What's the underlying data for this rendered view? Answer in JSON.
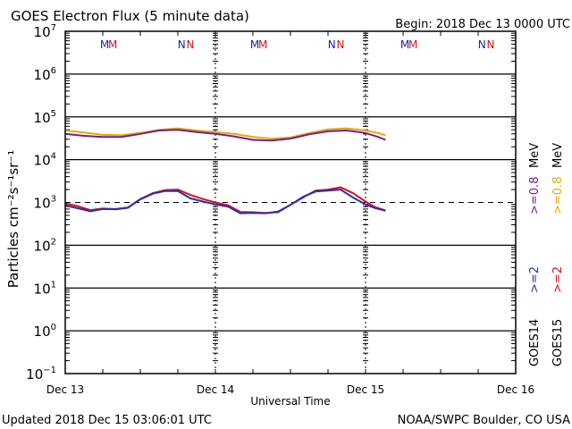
{
  "chart_data": {
    "type": "line",
    "title": "GOES Electron Flux (5 minute data)",
    "subtitle": "Begin: 2018 Dec 13 0000 UTC",
    "xlabel": "Universal Time",
    "ylabel": "Particles cm⁻²s⁻¹sr⁻¹",
    "yscale": "log",
    "ylim": [
      0.1,
      10000000
    ],
    "xlim_hours": [
      0,
      72
    ],
    "x_ticks": [
      {
        "hour": 0,
        "label": "Dec 13"
      },
      {
        "hour": 24,
        "label": "Dec 14"
      },
      {
        "hour": 48,
        "label": "Dec 15"
      },
      {
        "hour": 72,
        "label": "Dec 16"
      }
    ],
    "y_ticks": [
      {
        "exp": 7,
        "label": "10",
        "sup": "7"
      },
      {
        "exp": 6,
        "label": "10",
        "sup": "6"
      },
      {
        "exp": 5,
        "label": "10",
        "sup": "5"
      },
      {
        "exp": 4,
        "label": "10",
        "sup": "4"
      },
      {
        "exp": 3,
        "label": "10",
        "sup": "3"
      },
      {
        "exp": 2,
        "label": "10",
        "sup": "2"
      },
      {
        "exp": 1,
        "label": "10",
        "sup": "1"
      },
      {
        "exp": 0,
        "label": "10",
        "sup": "0"
      },
      {
        "exp": -1,
        "label": "10",
        "sup": "−1"
      }
    ],
    "threshold": {
      "value": 1000,
      "style": "dashed"
    },
    "grid": "horizontal lines at each decade",
    "markers": [
      {
        "label": "M",
        "hour": 6.3,
        "color": "#2020c0"
      },
      {
        "label": "M",
        "hour": 7.6,
        "color": "#e01010"
      },
      {
        "label": "N",
        "hour": 18.6,
        "color": "#2020c0"
      },
      {
        "label": "N",
        "hour": 20.0,
        "color": "#e01010"
      },
      {
        "label": "M",
        "hour": 30.3,
        "color": "#2020c0"
      },
      {
        "label": "M",
        "hour": 31.6,
        "color": "#e01010"
      },
      {
        "label": "N",
        "hour": 42.6,
        "color": "#2020c0"
      },
      {
        "label": "N",
        "hour": 44.0,
        "color": "#e01010"
      },
      {
        "label": "M",
        "hour": 54.3,
        "color": "#2020c0"
      },
      {
        "label": "M",
        "hour": 55.6,
        "color": "#e01010"
      },
      {
        "label": "N",
        "hour": 66.6,
        "color": "#2020c0"
      },
      {
        "label": "N",
        "hour": 68.0,
        "color": "#e01010"
      }
    ],
    "series": [
      {
        "name": "GOES15 >=0.8 MeV",
        "satellite": "GOES15",
        "energy": ">=0.8",
        "unit": "MeV",
        "color": "#e8a800",
        "x": [
          0,
          3,
          6,
          9,
          12,
          15,
          18,
          21,
          24,
          27,
          30,
          33,
          36,
          39,
          42,
          45,
          48,
          50,
          51.2
        ],
        "y": [
          48000,
          43000,
          38000,
          37000,
          42000,
          50000,
          54000,
          48000,
          44000,
          40000,
          34000,
          31000,
          33000,
          42000,
          51000,
          54000,
          48000,
          42000,
          37000
        ]
      },
      {
        "name": "GOES14 >=0.8 MeV",
        "satellite": "GOES14",
        "energy": ">=0.8",
        "unit": "MeV",
        "color": "#6a1fa0",
        "x": [
          0,
          3,
          6,
          9,
          12,
          15,
          18,
          21,
          24,
          27,
          30,
          33,
          36,
          39,
          42,
          45,
          48,
          50,
          51.2
        ],
        "y": [
          40000,
          36000,
          34000,
          34000,
          40000,
          48000,
          50000,
          44000,
          40000,
          35000,
          29000,
          28000,
          31000,
          39000,
          46000,
          48000,
          42000,
          34000,
          29000
        ]
      },
      {
        "name": "GOES15 >=2 MeV",
        "satellite": "GOES15",
        "energy": ">=2",
        "unit": "MeV",
        "color": "#e01010",
        "x": [
          0,
          2,
          4,
          6,
          8,
          10,
          12,
          14,
          16,
          18,
          20,
          22,
          24,
          26,
          28,
          30,
          32,
          34,
          36,
          38,
          40,
          42,
          44,
          46,
          48,
          49.5,
          51.2
        ],
        "y": [
          950,
          820,
          660,
          720,
          700,
          760,
          1200,
          1650,
          1950,
          2000,
          1500,
          1200,
          1000,
          860,
          600,
          590,
          570,
          590,
          880,
          1300,
          1900,
          2000,
          2250,
          1650,
          1050,
          780,
          650
        ]
      },
      {
        "name": "GOES14 >=2 MeV",
        "satellite": "GOES14",
        "energy": ">=2",
        "unit": "MeV",
        "color": "#2030c0",
        "x": [
          0,
          2,
          4,
          6,
          8,
          10,
          12,
          14,
          16,
          18,
          20,
          22,
          24,
          26,
          28,
          30,
          32,
          34,
          36,
          38,
          40,
          42,
          44,
          46,
          48,
          49.5,
          51.2
        ],
        "y": [
          850,
          730,
          620,
          700,
          690,
          750,
          1180,
          1600,
          1850,
          1850,
          1250,
          1050,
          900,
          800,
          560,
          570,
          560,
          610,
          880,
          1350,
          1800,
          1900,
          2000,
          1300,
          900,
          740,
          640
        ]
      }
    ],
    "legend": {
      "placement": "right, rotated vertical",
      "rows": [
        {
          "satellite": "GOES14",
          "items": [
            {
              "text": ">=2",
              "color": "#2030c0"
            },
            {
              "text": ">=0.8",
              "color": "#6a1fa0"
            }
          ],
          "unit": "MeV"
        },
        {
          "satellite": "GOES15",
          "items": [
            {
              "text": ">=2",
              "color": "#e01010"
            },
            {
              "text": ">=0.8",
              "color": "#e8a800"
            }
          ],
          "unit": "MeV"
        }
      ]
    }
  },
  "footer": {
    "updated": "Updated 2018 Dec 15 03:06:01 UTC",
    "credit": "NOAA/SWPC Boulder, CO USA"
  }
}
